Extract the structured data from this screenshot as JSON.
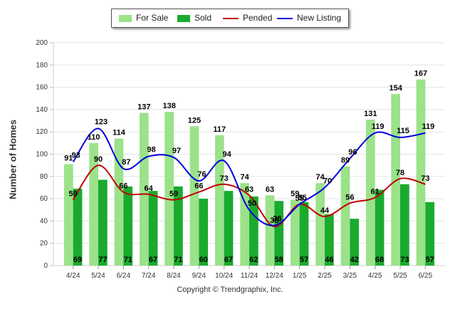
{
  "chart_data": {
    "type": "bar",
    "categories": [
      "4/24",
      "5/24",
      "6/24",
      "7/24",
      "8/24",
      "9/24",
      "10/24",
      "11/24",
      "12/24",
      "1/25",
      "2/25",
      "3/25",
      "4/25",
      "5/25",
      "6/25"
    ],
    "series": [
      {
        "name": "For Sale",
        "type": "bar",
        "color": "#9be28a",
        "values": [
          91,
          110,
          114,
          137,
          138,
          125,
          117,
          74,
          63,
          59,
          74,
          89,
          131,
          154,
          167
        ]
      },
      {
        "name": "Sold",
        "type": "bar",
        "color": "#1aaa2e",
        "values": [
          69,
          77,
          71,
          67,
          71,
          60,
          67,
          62,
          58,
          57,
          46,
          42,
          68,
          73,
          57
        ]
      },
      {
        "name": "Pended",
        "type": "line",
        "color": "#c00000",
        "values": [
          59,
          90,
          66,
          64,
          59,
          66,
          73,
          63,
          35,
          55,
          44,
          56,
          61,
          78,
          73
        ]
      },
      {
        "name": "New Listing",
        "type": "line",
        "color": "#0000dd",
        "values": [
          93,
          123,
          87,
          98,
          97,
          76,
          94,
          50,
          36,
          55,
          70,
          96,
          119,
          115,
          119
        ]
      }
    ],
    "ylabel": "Number of Homes",
    "ylim": [
      0,
      200
    ],
    "yticks": [
      0,
      20,
      40,
      60,
      80,
      100,
      120,
      140,
      160,
      180,
      200
    ],
    "grid": true,
    "legend_position": "top-center"
  },
  "footer": {
    "copyright": "Copyright © Trendgraphix, Inc."
  }
}
